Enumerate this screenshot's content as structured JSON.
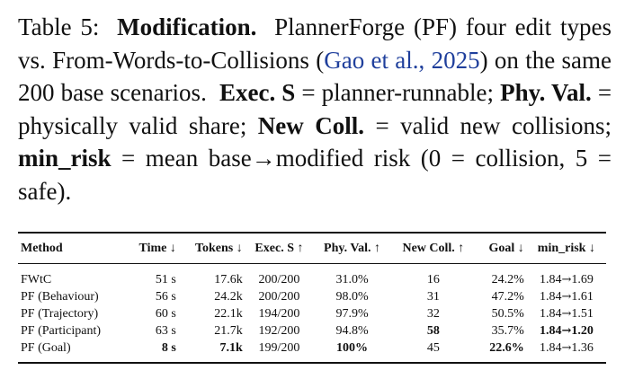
{
  "caption": {
    "label": "Table 5:",
    "title": "Modification.",
    "text_1": "PlannerForge (PF) four edit types vs. From-Words-to-Collisions (",
    "citation": "Gao et al., 2025",
    "text_2": ") on the same 200 base scenarios.",
    "term_1": "Exec. S",
    "def_1": "= planner-runnable;",
    "term_2": "Phy. Val.",
    "def_2": "= physically valid share;",
    "term_3": "New Coll.",
    "def_3": "= valid new collisions;",
    "term_4": "min_risk",
    "def_4": "= mean base→modified risk (0 = collision, 5 = safe)."
  },
  "table": {
    "headers": [
      "Method",
      "Time ↓",
      "Tokens ↓",
      "Exec. S ↑",
      "Phy. Val. ↑",
      "New Coll. ↑",
      "Goal ↓",
      "min_risk ↓"
    ],
    "rows": [
      {
        "method": "FWtC",
        "time": "51 s",
        "tokens": "17.6k",
        "exec": "200/200",
        "phy": "31.0%",
        "coll": "16",
        "goal": "24.2%",
        "risk_a": "1.84",
        "risk_b": "1.69"
      },
      {
        "method": "PF (Behaviour)",
        "time": "56 s",
        "tokens": "24.2k",
        "exec": "200/200",
        "phy": "98.0%",
        "coll": "31",
        "goal": "47.2%",
        "risk_a": "1.84",
        "risk_b": "1.61"
      },
      {
        "method": "PF (Trajectory)",
        "time": "60 s",
        "tokens": "22.1k",
        "exec": "194/200",
        "phy": "97.9%",
        "coll": "32",
        "goal": "50.5%",
        "risk_a": "1.84",
        "risk_b": "1.51"
      },
      {
        "method": "PF (Participant)",
        "time": "63 s",
        "tokens": "21.7k",
        "exec": "192/200",
        "phy": "94.8%",
        "coll": "58",
        "goal": "35.7%",
        "risk_a": "1.84",
        "risk_b": "1.20"
      },
      {
        "method": "PF (Goal)",
        "time": "8 s",
        "tokens": "7.1k",
        "exec": "199/200",
        "phy": "100%",
        "coll": "45",
        "goal": "22.6%",
        "risk_a": "1.84",
        "risk_b": "1.36"
      }
    ],
    "arrow": "→"
  }
}
